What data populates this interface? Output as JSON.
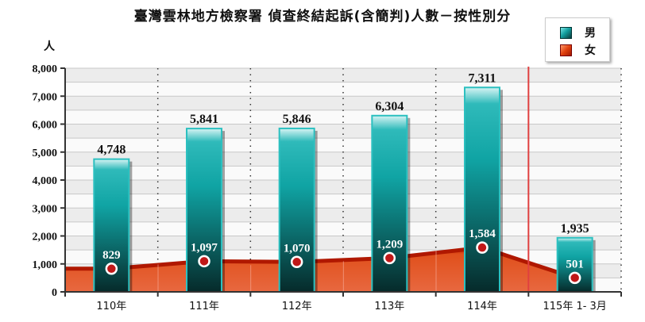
{
  "title": "臺灣雲林地方檢察署 偵查終結起訴(含簡判)人數－按性別分",
  "y_unit": "人",
  "legend": [
    {
      "label": "男",
      "color": "#1aa8a8"
    },
    {
      "label": "女",
      "color": "#d83a10"
    }
  ],
  "chart_data": {
    "type": "bar",
    "title": "臺灣雲林地方檢察署 偵查終結起訴(含簡判)人數－按性別分",
    "xlabel": "",
    "ylabel": "人",
    "ylim": [
      0,
      8000
    ],
    "yticks": [
      "0",
      "1,000",
      "2,000",
      "3,000",
      "4,000",
      "5,000",
      "6,000",
      "7,000",
      "8,000"
    ],
    "grid": true,
    "legend_position": "top-right",
    "categories": [
      "110年",
      "111年",
      "112年",
      "113年",
      "114年",
      "115年 1- 3月"
    ],
    "series": [
      {
        "name": "男",
        "type": "bar",
        "color": "#1aa8a8",
        "values": [
          4748,
          5841,
          5846,
          6304,
          7311,
          1935
        ],
        "labels": [
          "4,748",
          "5,841",
          "5,846",
          "6,304",
          "7,311",
          "1,935"
        ]
      },
      {
        "name": "女",
        "type": "area",
        "color": "#d83a10",
        "values": [
          829,
          1097,
          1070,
          1209,
          1584,
          501
        ],
        "labels": [
          "829",
          "1,097",
          "1,070",
          "1,209",
          "1,584",
          "501"
        ]
      }
    ],
    "annotations": [
      "red vertical separator line between 114年 and 115年 1- 3月"
    ]
  }
}
